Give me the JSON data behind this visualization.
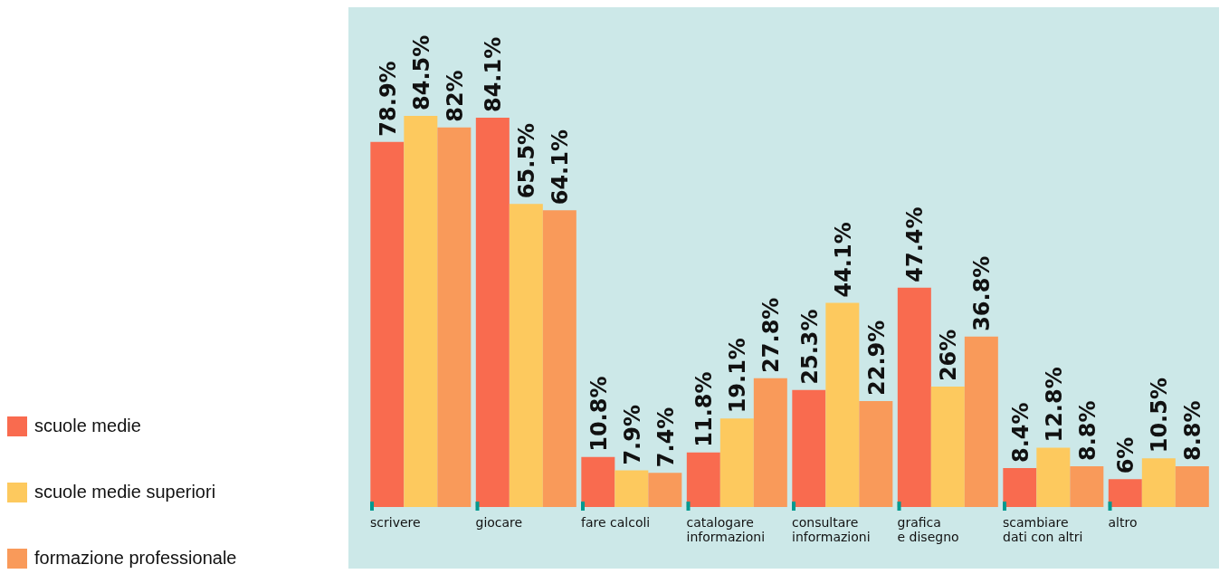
{
  "chart_data": {
    "type": "bar",
    "categories": [
      "scrivere",
      "giocare",
      "fare calcoli",
      "catalogare informazioni",
      "consultare informazioni",
      "grafica e disegno",
      "scambiare dati con altri",
      "altro"
    ],
    "series": [
      {
        "name": "scuole medie",
        "color": "#f96b4f",
        "values": [
          78.9,
          84.1,
          10.8,
          11.8,
          25.3,
          47.4,
          8.4,
          6
        ],
        "value_labels": [
          "78.9%",
          "84.1%",
          "10.8%",
          "11.8%",
          "25.3%",
          "47.4%",
          "8.4%",
          "6%"
        ]
      },
      {
        "name": "scuole medie superiori",
        "color": "#fdc95e",
        "values": [
          84.5,
          65.5,
          7.9,
          19.1,
          44.1,
          26,
          12.8,
          10.5
        ],
        "value_labels": [
          "84.5%",
          "65.5%",
          "7.9%",
          "19.1%",
          "44.1%",
          "26%",
          "12.8%",
          "10.5%"
        ]
      },
      {
        "name": "formazione professionale",
        "color": "#f99a5a",
        "values": [
          82,
          64.1,
          7.4,
          27.8,
          22.9,
          36.8,
          8.8,
          8.8
        ],
        "value_labels": [
          "82%",
          "64.1%",
          "7.4%",
          "27.8%",
          "22.9%",
          "36.8%",
          "8.8%",
          "8.8%"
        ]
      }
    ],
    "legend": "left",
    "grid": false
  }
}
